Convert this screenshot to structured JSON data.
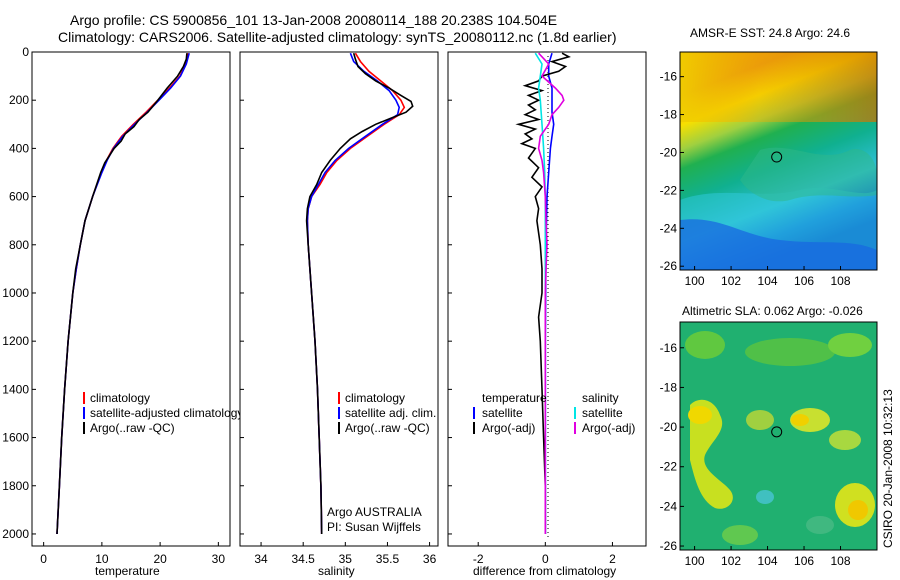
{
  "header": {
    "line1": "Argo profile: CS 5900856_101 13-Jan-2008 20080114_188 20.238S 104.504E",
    "line2": "Climatology: CARS2006. Satellite-adjusted climatology: synTS_20080112.nc (1.8d earlier)"
  },
  "colors": {
    "climatology": "#ff0000",
    "satellite": "#0000ff",
    "argo": "#000000",
    "salinity_satellite": "#00e5e5",
    "salinity_argo": "#e000e0"
  },
  "chart_data": [
    {
      "type": "line",
      "title": "",
      "xlabel": "temperature",
      "ylabel": "",
      "xlim": [
        -2,
        32
      ],
      "ylim": [
        2050,
        0
      ],
      "x_ticks": [
        "0",
        "10",
        "20",
        "30"
      ],
      "y_ticks": [
        "0",
        "200",
        "400",
        "600",
        "800",
        "1000",
        "1200",
        "1400",
        "1600",
        "1800",
        "2000"
      ],
      "legend": [
        "climatology",
        "satellite-adjusted climatology",
        "Argo(..raw -QC)"
      ],
      "series": [
        {
          "name": "climatology",
          "depth": [
            5,
            50,
            100,
            150,
            200,
            250,
            300,
            350,
            400,
            450,
            500,
            600,
            700,
            800,
            900,
            1000,
            1200,
            1400,
            1600,
            1800,
            2000
          ],
          "values": [
            24.8,
            24.4,
            23.4,
            21.6,
            19.6,
            17.6,
            15.4,
            13.4,
            11.9,
            10.8,
            9.9,
            8.4,
            7.1,
            6.3,
            5.6,
            5.0,
            4.2,
            3.6,
            3.1,
            2.7,
            2.3
          ]
        },
        {
          "name": "satellite-adjusted climatology",
          "depth": [
            5,
            50,
            100,
            150,
            200,
            250,
            300,
            350,
            400,
            450,
            500,
            600,
            700,
            800,
            900,
            1000,
            1200,
            1400,
            1600,
            1800,
            2000
          ],
          "values": [
            25.0,
            24.5,
            23.5,
            21.8,
            19.8,
            17.8,
            15.6,
            13.6,
            12.0,
            10.9,
            10.0,
            8.4,
            7.1,
            6.3,
            5.6,
            5.0,
            4.2,
            3.6,
            3.1,
            2.7,
            2.3
          ]
        },
        {
          "name": "Argo(..raw -QC)",
          "depth": [
            5,
            30,
            60,
            100,
            150,
            200,
            250,
            280,
            310,
            340,
            370,
            400,
            430,
            460,
            500,
            600,
            700,
            800,
            900,
            1000,
            1200,
            1400,
            1600,
            1800,
            2000
          ],
          "values": [
            24.6,
            24.5,
            24.0,
            23.0,
            21.2,
            19.6,
            17.9,
            16.4,
            15.5,
            14.0,
            13.3,
            12.1,
            11.3,
            10.5,
            9.8,
            8.4,
            7.1,
            6.3,
            5.5,
            5.0,
            4.2,
            3.6,
            3.1,
            2.7,
            2.3
          ]
        }
      ]
    },
    {
      "type": "line",
      "title": "",
      "xlabel": "salinity",
      "ylabel": "",
      "xlim": [
        33.75,
        36.1
      ],
      "ylim": [
        2050,
        0
      ],
      "x_ticks": [
        "34",
        "34.5",
        "35",
        "35.5",
        "36"
      ],
      "legend": [
        "climatology",
        "satellite adj. clim.",
        "Argo(..raw -QC)"
      ],
      "annotation": [
        "Argo AUSTRALIA",
        "PI: Susan Wijffels"
      ],
      "series": [
        {
          "name": "climatology",
          "depth": [
            5,
            40,
            80,
            120,
            160,
            200,
            230,
            260,
            300,
            350,
            400,
            450,
            500,
            550,
            600,
            650,
            700,
            800,
            900,
            1000,
            1200,
            1400,
            1600,
            1800,
            2000
          ],
          "values": [
            35.12,
            35.18,
            35.28,
            35.42,
            35.56,
            35.66,
            35.7,
            35.64,
            35.46,
            35.26,
            35.06,
            34.9,
            34.78,
            34.7,
            34.6,
            34.56,
            34.55,
            34.56,
            34.58,
            34.6,
            34.64,
            34.67,
            34.69,
            34.71,
            34.72
          ]
        },
        {
          "name": "satellite adj. clim.",
          "depth": [
            5,
            40,
            80,
            120,
            160,
            200,
            230,
            260,
            300,
            350,
            400,
            450,
            500,
            550,
            600,
            650,
            700,
            800,
            900,
            1000,
            1200,
            1400,
            1600,
            1800,
            2000
          ],
          "values": [
            35.06,
            35.1,
            35.22,
            35.38,
            35.52,
            35.6,
            35.64,
            35.62,
            35.44,
            35.24,
            35.04,
            34.88,
            34.76,
            34.68,
            34.6,
            34.56,
            34.55,
            34.56,
            34.58,
            34.6,
            34.64,
            34.67,
            34.69,
            34.71,
            34.72
          ]
        },
        {
          "name": "Argo(..raw -QC)",
          "depth": [
            5,
            30,
            60,
            90,
            120,
            150,
            180,
            205,
            225,
            250,
            275,
            300,
            330,
            360,
            400,
            450,
            500,
            550,
            600,
            650,
            700,
            800,
            900,
            1000,
            1200,
            1400,
            1600,
            1800,
            2000
          ],
          "values": [
            35.1,
            35.12,
            35.15,
            35.24,
            35.36,
            35.52,
            35.66,
            35.78,
            35.8,
            35.72,
            35.54,
            35.36,
            35.2,
            35.06,
            34.94,
            34.82,
            34.72,
            34.66,
            34.58,
            34.55,
            34.54,
            34.56,
            34.58,
            34.6,
            34.64,
            34.67,
            34.69,
            34.71,
            34.72
          ]
        }
      ]
    },
    {
      "type": "line",
      "title": "",
      "xlabel": "difference from climatology",
      "ylabel": "",
      "xlim": [
        -2.9,
        3.0
      ],
      "ylim": [
        2050,
        0
      ],
      "x_ticks": [
        "-2",
        "0",
        "2"
      ],
      "legend": [
        "temperature",
        "satellite",
        "Argo(-adj)",
        "salinity",
        "satellite",
        "Argo(-adj)"
      ],
      "series": [
        {
          "name": "temperature satellite",
          "depth": [
            5,
            50,
            100,
            150,
            200,
            250,
            300,
            350,
            400,
            500,
            600,
            800,
            1000,
            1200,
            1500,
            1800,
            2000
          ],
          "values": [
            0.2,
            0.1,
            0.1,
            0.2,
            0.2,
            0.2,
            0.25,
            0.2,
            0.15,
            0.1,
            0.05,
            0.02,
            0.01,
            0.0,
            0.0,
            0.0,
            0.0
          ]
        },
        {
          "name": "temperature Argo(-adj)",
          "depth": [
            5,
            20,
            40,
            60,
            80,
            100,
            120,
            140,
            160,
            180,
            200,
            220,
            240,
            260,
            280,
            300,
            320,
            340,
            360,
            380,
            400,
            440,
            480,
            520,
            560,
            600,
            650,
            700,
            800,
            900,
            1000,
            1100,
            1200,
            1400,
            1600,
            1800,
            2000
          ],
          "values": [
            0.5,
            0.7,
            0.2,
            0.6,
            0.4,
            -0.1,
            -0.2,
            -0.6,
            -0.1,
            -0.5,
            -0.2,
            -0.5,
            -0.3,
            -0.6,
            -0.2,
            -0.8,
            -0.3,
            -0.6,
            -0.4,
            -0.7,
            -0.3,
            -0.5,
            -0.2,
            -0.4,
            -0.1,
            -0.3,
            -0.2,
            -0.25,
            -0.15,
            -0.1,
            -0.1,
            -0.2,
            -0.15,
            -0.1,
            -0.05,
            0.0,
            0.0
          ]
        },
        {
          "name": "salinity satellite",
          "depth": [
            5,
            50,
            100,
            150,
            200,
            300,
            400,
            500,
            600,
            800,
            1000,
            1200,
            1500,
            1800,
            2000
          ],
          "values": [
            -0.3,
            -0.1,
            -0.15,
            -0.2,
            -0.15,
            -0.1,
            -0.05,
            -0.02,
            0.0,
            0.0,
            0.0,
            0.0,
            0.0,
            0.0,
            0.0
          ]
        },
        {
          "name": "salinity Argo(-adj)",
          "depth": [
            5,
            50,
            100,
            150,
            180,
            200,
            230,
            260,
            300,
            350,
            400,
            450,
            500,
            600,
            700,
            800,
            900,
            1000,
            1200,
            1500,
            1800,
            2000
          ],
          "values": [
            -0.2,
            0.1,
            -0.1,
            0.3,
            0.5,
            0.55,
            0.4,
            0.2,
            0.1,
            -0.15,
            -0.2,
            -0.1,
            -0.05,
            0.0,
            0.02,
            0.05,
            0.02,
            0.0,
            0.0,
            0.0,
            0.0,
            0.0
          ]
        }
      ]
    },
    {
      "type": "heatmap",
      "title": "AMSR-E SST: 24.8 Argo: 24.6",
      "x_ticks": [
        "100",
        "102",
        "104",
        "106",
        "108"
      ],
      "y_ticks": [
        "-16",
        "-18",
        "-20",
        "-22",
        "-24",
        "-26"
      ],
      "xlim": [
        99.2,
        110
      ],
      "ylim": [
        -26.2,
        -14.7
      ],
      "marker": {
        "lon": 104.5,
        "lat": -20.24
      }
    },
    {
      "type": "heatmap",
      "title": "Altimetric SLA: 0.062 Argo: -0.026",
      "x_ticks": [
        "100",
        "102",
        "104",
        "106",
        "108"
      ],
      "y_ticks": [
        "-16",
        "-18",
        "-20",
        "-22",
        "-24",
        "-26"
      ],
      "xlim": [
        99.2,
        110
      ],
      "ylim": [
        -26.2,
        -14.7
      ],
      "marker": {
        "lon": 104.5,
        "lat": -20.24
      }
    }
  ],
  "footer": {
    "stamp": "CSIRO 20-Jan-2008 10:32:13"
  }
}
